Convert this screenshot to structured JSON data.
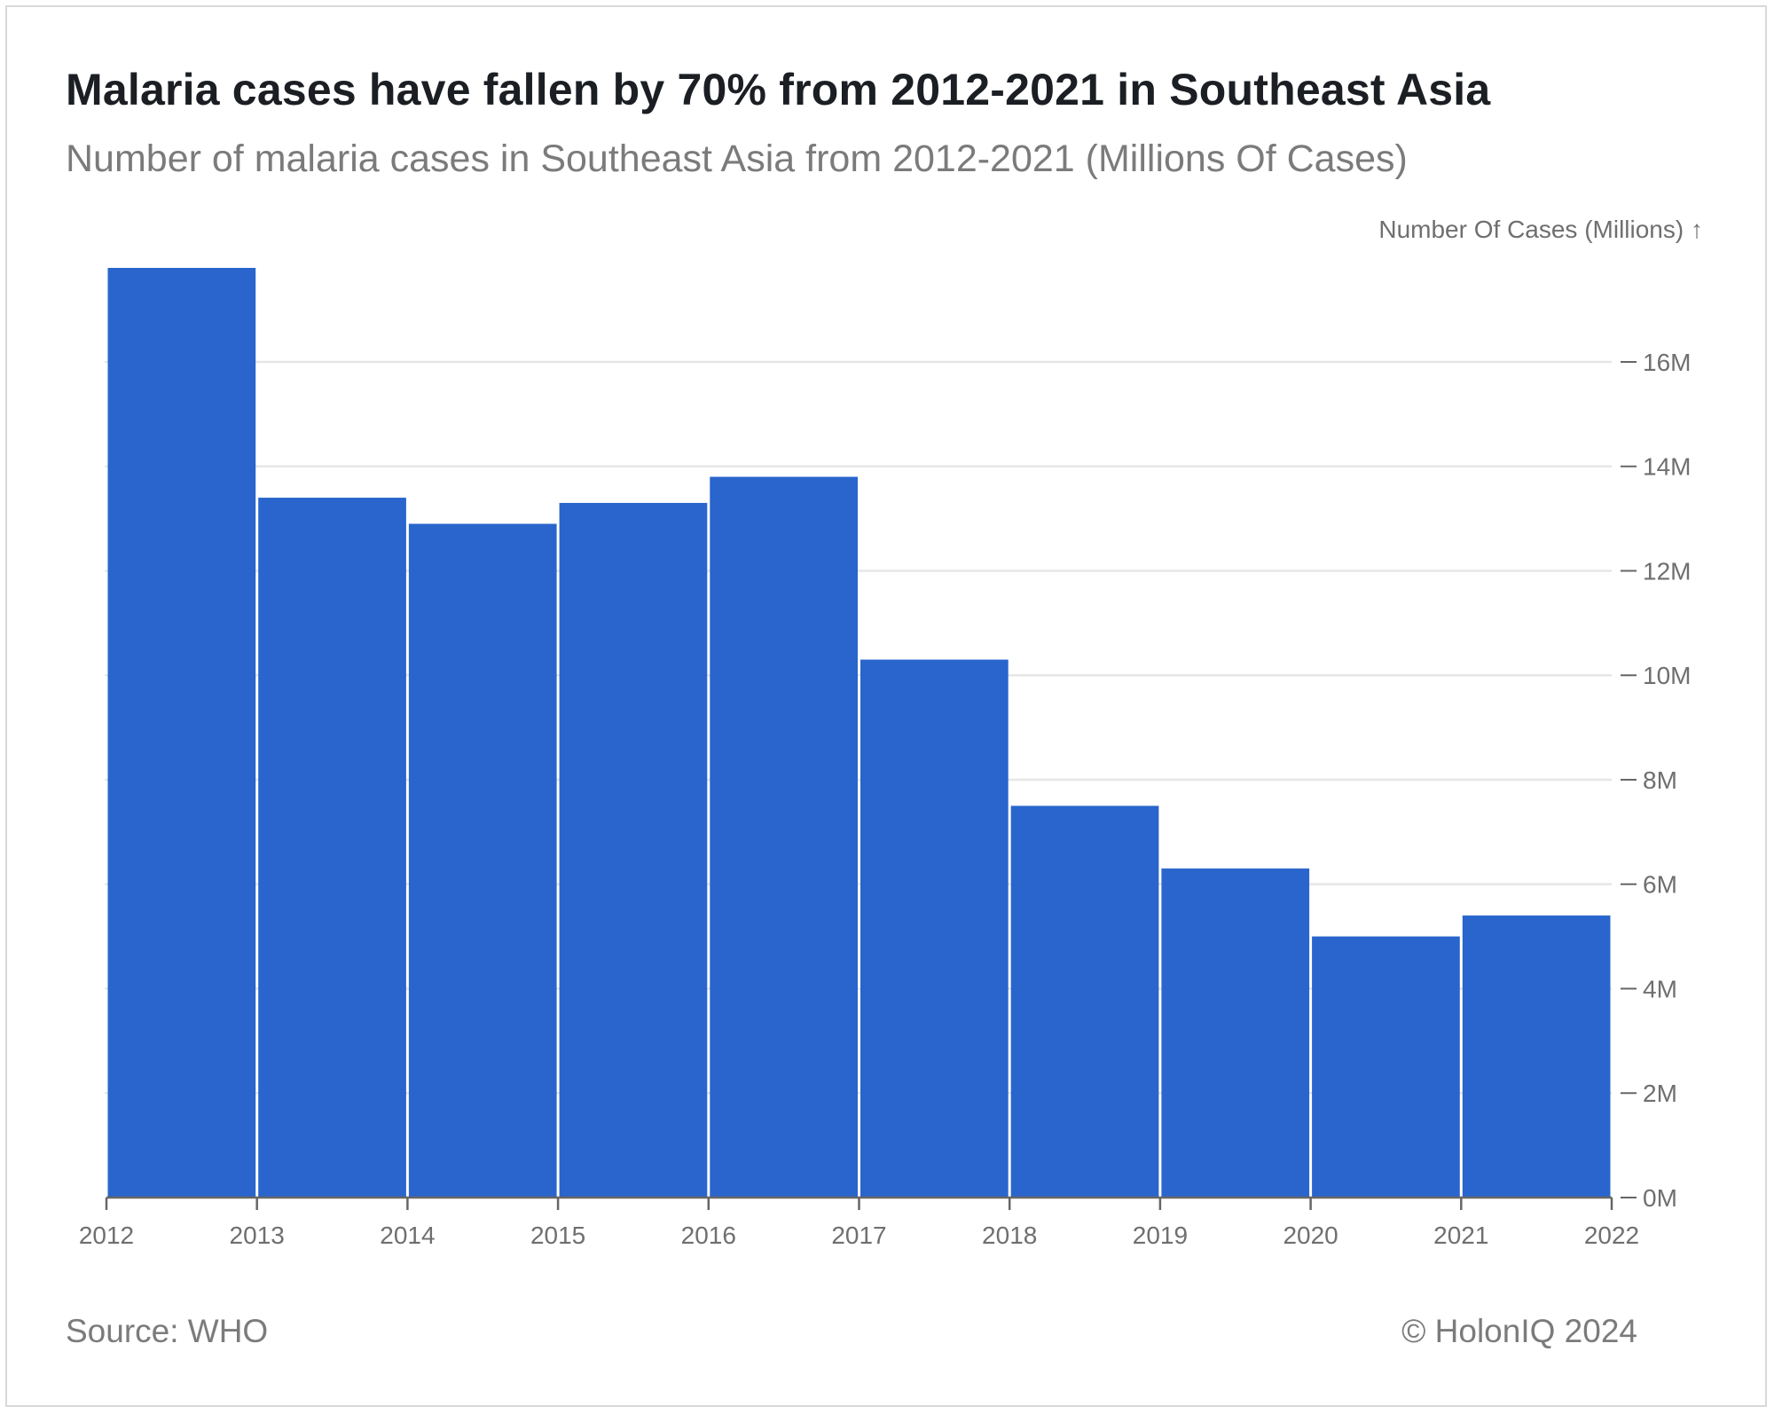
{
  "title": "Malaria cases have fallen by 70% from 2012-2021 in Southeast Asia",
  "subtitle": "Number of malaria cases in Southeast Asia from 2012-2021 (Millions Of Cases)",
  "y_axis_title": "Number Of Cases (Millions) ↑",
  "source": "Source: WHO",
  "copyright": "© HolonIQ 2024",
  "colors": {
    "bar": "#2965cc",
    "grid": "#e6e6e6",
    "axis": "#666666",
    "text": "#6f6f6f"
  },
  "chart_data": {
    "type": "bar",
    "title": "Malaria cases have fallen by 70% from 2012-2021 in Southeast Asia",
    "subtitle": "Number of malaria cases in Southeast Asia from 2012-2021 (Millions Of Cases)",
    "xlabel": "",
    "ylabel": "Number Of Cases (Millions)",
    "categories": [
      "2012",
      "2013",
      "2014",
      "2015",
      "2016",
      "2017",
      "2018",
      "2019",
      "2020",
      "2021"
    ],
    "x_ticks": [
      "2012",
      "2013",
      "2014",
      "2015",
      "2016",
      "2017",
      "2018",
      "2019",
      "2020",
      "2021",
      "2022"
    ],
    "values": [
      17.8,
      13.4,
      12.9,
      13.3,
      13.8,
      10.3,
      7.5,
      6.3,
      5.0,
      5.4
    ],
    "ylim": [
      0,
      17.8
    ],
    "y_ticks": [
      0,
      2,
      4,
      6,
      8,
      10,
      12,
      14,
      16
    ],
    "y_tick_labels": [
      "0M",
      "2M",
      "4M",
      "6M",
      "8M",
      "10M",
      "12M",
      "14M",
      "16M"
    ],
    "grid": true,
    "y_axis_side": "right"
  }
}
